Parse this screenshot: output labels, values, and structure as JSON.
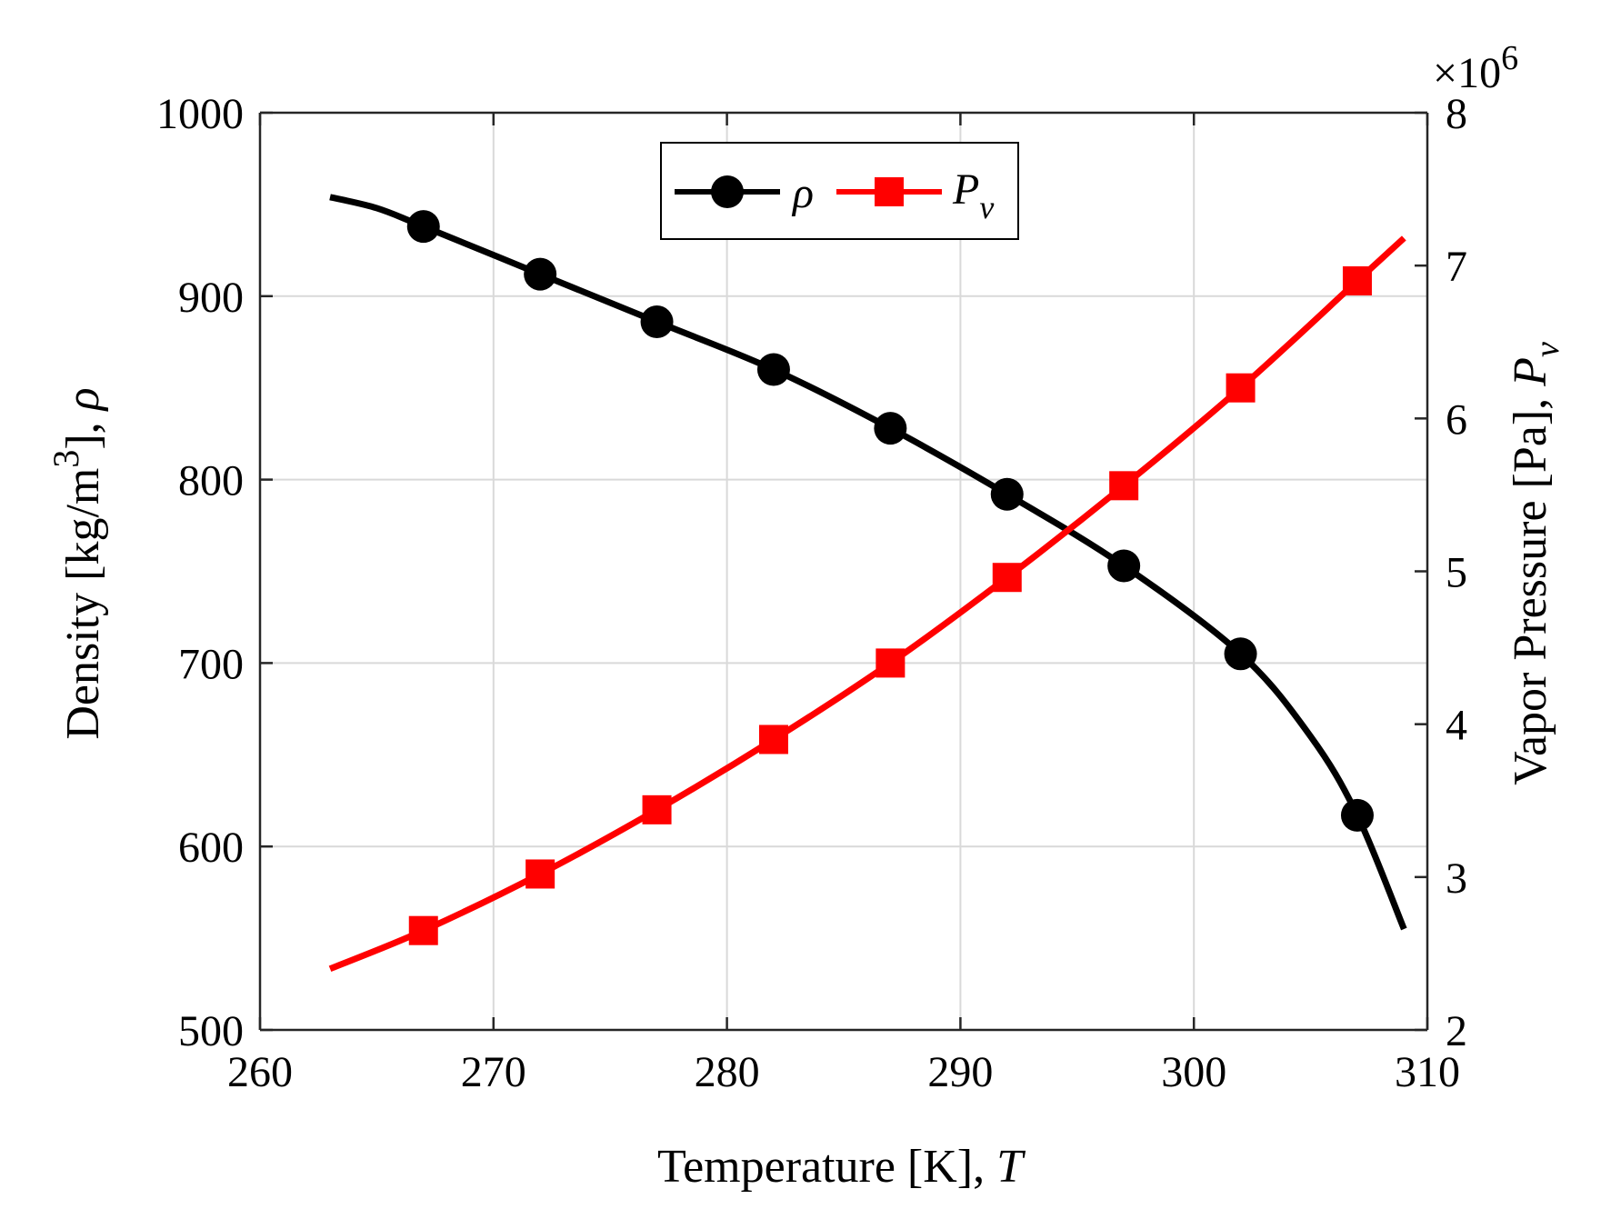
{
  "chart_data": {
    "type": "line",
    "xlabel": "Temperature [K], ",
    "xlabel_symbol": "T",
    "ylabel_left": "Density [kg/m",
    "ylabel_left_exp": "3",
    "ylabel_left_tail": "], ",
    "ylabel_left_symbol": "ρ",
    "ylabel_right": "Vapor Pressure [Pa], ",
    "ylabel_right_symbol": "P",
    "ylabel_right_sub": "v",
    "right_axis_multiplier_prefix": "×10",
    "right_axis_multiplier_exp": "6",
    "xlim": [
      260,
      310
    ],
    "ylim_left": [
      500,
      1000
    ],
    "ylim_right": [
      2,
      8
    ],
    "x_ticks": [
      "260",
      "270",
      "280",
      "290",
      "300",
      "310"
    ],
    "y_ticks_left": [
      "500",
      "600",
      "700",
      "800",
      "900",
      "1000"
    ],
    "y_ticks_right": [
      "2",
      "3",
      "4",
      "5",
      "6",
      "7",
      "8"
    ],
    "grid": true,
    "legend_position": "top-center",
    "series": [
      {
        "name": "ρ",
        "legend_label": "ρ",
        "axis": "left",
        "color": "#000000",
        "marker": "circle",
        "curve_x": [
          263,
          265,
          267,
          272,
          277,
          282,
          287,
          292,
          297,
          302,
          305,
          307,
          309
        ],
        "curve_y": [
          954,
          948,
          938,
          912,
          886,
          860,
          828,
          792,
          753,
          705,
          660,
          617,
          555
        ],
        "marker_x": [
          267,
          272,
          277,
          282,
          287,
          292,
          297,
          302,
          307
        ],
        "marker_y": [
          938,
          912,
          886,
          860,
          828,
          792,
          753,
          705,
          617
        ]
      },
      {
        "name": "P_v",
        "legend_label": "P",
        "legend_sub": "v",
        "axis": "right",
        "color": "#ff0000",
        "marker": "square",
        "curve_x": [
          263,
          267,
          272,
          277,
          282,
          287,
          292,
          297,
          302,
          307,
          309
        ],
        "curve_y": [
          2.4,
          2.65,
          3.02,
          3.44,
          3.9,
          4.4,
          4.96,
          5.56,
          6.2,
          6.9,
          7.18
        ],
        "marker_x": [
          267,
          272,
          277,
          282,
          287,
          292,
          297,
          302,
          307
        ],
        "marker_y": [
          2.65,
          3.02,
          3.44,
          3.9,
          4.4,
          4.96,
          5.56,
          6.2,
          6.9
        ]
      }
    ]
  }
}
